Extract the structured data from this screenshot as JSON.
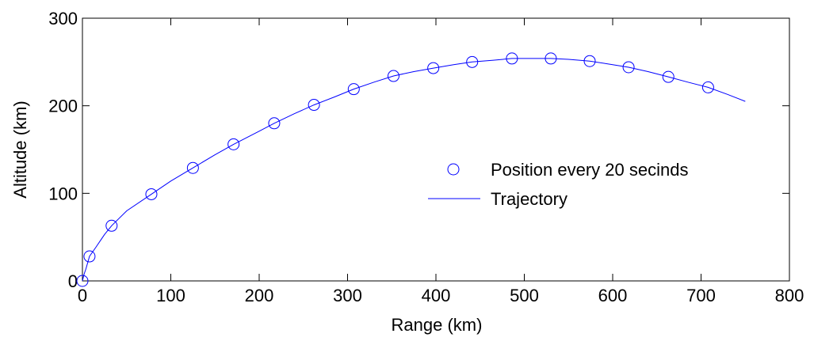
{
  "chart_data": {
    "type": "scatter",
    "title": "",
    "xlabel": "Range (km)",
    "ylabel": "Altitude (km)",
    "xlim": [
      0,
      800
    ],
    "ylim": [
      0,
      300
    ],
    "x_ticks": [
      0,
      100,
      200,
      300,
      400,
      500,
      600,
      700,
      800
    ],
    "y_ticks": [
      0,
      100,
      200,
      300
    ],
    "x_tick_labels": [
      "0",
      "100",
      "200",
      "300",
      "400",
      "500",
      "600",
      "700",
      "800"
    ],
    "y_tick_labels": [
      "0",
      "100",
      "200",
      "300"
    ],
    "grid": false,
    "legend_position": "right",
    "series": [
      {
        "name": "Position every 20 secinds",
        "kind": "markers",
        "marker": "circle",
        "color": "#0000ff",
        "x": [
          0,
          8,
          33,
          78,
          125,
          171,
          217,
          262,
          307,
          352,
          397,
          441,
          486,
          530,
          574,
          618,
          663,
          708
        ],
        "y": [
          0,
          28,
          63,
          99,
          129,
          156,
          180,
          201,
          219,
          234,
          243,
          250,
          254,
          254,
          251,
          244,
          233,
          221
        ]
      },
      {
        "name": "Trajectory",
        "kind": "line",
        "color": "#0000ff",
        "x": [
          0,
          2,
          4,
          8,
          15,
          25,
          33,
          50,
          78,
          100,
          125,
          150,
          171,
          200,
          217,
          240,
          262,
          285,
          307,
          330,
          352,
          375,
          397,
          420,
          441,
          465,
          486,
          510,
          530,
          550,
          574,
          600,
          618,
          640,
          663,
          685,
          708,
          730,
          750
        ],
        "y": [
          0,
          8,
          14,
          28,
          38,
          53,
          63,
          80,
          99,
          114,
          129,
          144,
          156,
          171,
          180,
          191,
          201,
          210,
          219,
          227,
          234,
          239,
          243,
          247,
          250,
          252,
          254,
          254,
          254,
          253,
          251,
          247,
          244,
          239,
          233,
          227,
          221,
          213,
          205
        ]
      }
    ]
  }
}
